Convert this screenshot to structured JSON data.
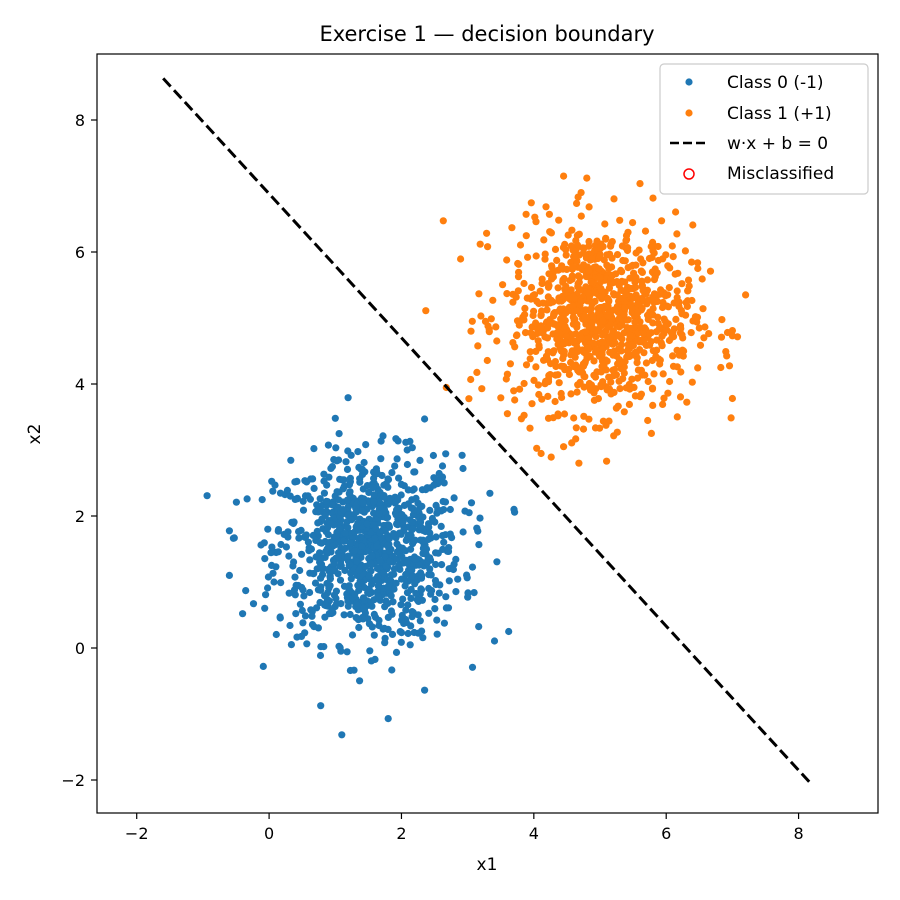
{
  "chart_data": {
    "type": "scatter",
    "title": "Exercise 1 — decision boundary",
    "xlabel": "x1",
    "ylabel": "x2",
    "xlim": [
      -2.6,
      9.2
    ],
    "ylim": [
      -2.5,
      9.0
    ],
    "xticks": [
      -2,
      0,
      2,
      4,
      6,
      8
    ],
    "xtick_labels": [
      "−2",
      "0",
      "2",
      "4",
      "6",
      "8"
    ],
    "yticks": [
      -2,
      0,
      2,
      4,
      6,
      8
    ],
    "ytick_labels": [
      "−2",
      "0",
      "2",
      "4",
      "6",
      "8"
    ],
    "grid": false,
    "legend_position": "top-right",
    "series": [
      {
        "name": "Class 0 (-1)",
        "kind": "scatter",
        "color": "#1f77b4",
        "center": [
          1.5,
          1.5
        ],
        "spread": [
          0.7,
          0.7
        ],
        "count": 1000,
        "outliers": [
          [
            1.8,
            -1.07
          ],
          [
            -0.6,
            1.1
          ],
          [
            3.62,
            0.25
          ],
          [
            3.7,
            2.1
          ],
          [
            1.0,
            3.48
          ],
          [
            2.35,
            3.47
          ],
          [
            -0.4,
            0.52
          ],
          [
            2.35,
            -0.64
          ]
        ]
      },
      {
        "name": "Class 1 (+1)",
        "kind": "scatter",
        "color": "#ff7f0e",
        "center": [
          5.0,
          5.0
        ],
        "spread": [
          0.7,
          0.7
        ],
        "count": 1000,
        "outliers": [
          [
            3.07,
            4.95
          ],
          [
            3.05,
            4.8
          ],
          [
            7.2,
            5.35
          ],
          [
            7.0,
            3.78
          ],
          [
            4.45,
            7.15
          ],
          [
            4.8,
            7.12
          ],
          [
            5.1,
            2.83
          ],
          [
            4.45,
            3.05
          ],
          [
            3.6,
            3.55
          ],
          [
            7.0,
            4.73
          ]
        ]
      },
      {
        "name": "w·x + b = 0",
        "kind": "line",
        "color": "#000000",
        "style": "dashed",
        "x": [
          -1.6,
          8.2
        ],
        "y": [
          8.63,
          -2.07
        ]
      },
      {
        "name": "Misclassified",
        "kind": "scatter-hollow",
        "color": "#ff0000",
        "points": []
      }
    ]
  }
}
